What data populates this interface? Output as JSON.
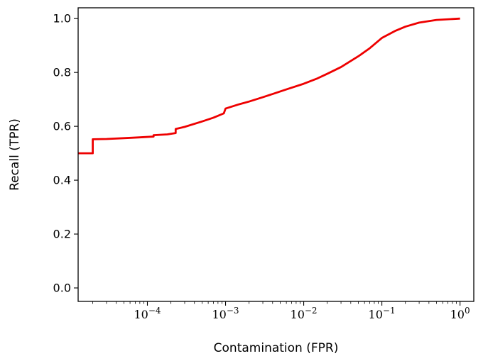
{
  "chart_data": {
    "type": "line",
    "title": "",
    "xlabel": "Contamination (FPR)",
    "ylabel": "Recall (TPR)",
    "x_scale": "log",
    "xlim": [
      1.3e-05,
      1.5
    ],
    "ylim": [
      -0.05,
      1.04
    ],
    "x_ticks": [
      {
        "value": 0.0001,
        "label": "−4"
      },
      {
        "value": 0.001,
        "label": "−3"
      },
      {
        "value": 0.01,
        "label": "−2"
      },
      {
        "value": 0.1,
        "label": "−1"
      },
      {
        "value": 1,
        "label": "0"
      }
    ],
    "x_tick_base": "10",
    "y_ticks": [
      {
        "value": 0.0,
        "label": "0.0"
      },
      {
        "value": 0.2,
        "label": "0.2"
      },
      {
        "value": 0.4,
        "label": "0.4"
      },
      {
        "value": 0.6,
        "label": "0.6"
      },
      {
        "value": 0.8,
        "label": "0.8"
      },
      {
        "value": 1.0,
        "label": "1.0"
      }
    ],
    "grid": false,
    "series": [
      {
        "color": "#ee0000",
        "points": [
          [
            1.3e-05,
            0.5
          ],
          [
            2e-05,
            0.5
          ],
          [
            2e-05,
            0.552
          ],
          [
            3e-05,
            0.553
          ],
          [
            5e-05,
            0.556
          ],
          [
            8e-05,
            0.559
          ],
          [
            0.00012,
            0.562
          ],
          [
            0.00012,
            0.567
          ],
          [
            0.00018,
            0.57
          ],
          [
            0.00023,
            0.575
          ],
          [
            0.00023,
            0.59
          ],
          [
            0.0003,
            0.598
          ],
          [
            0.0005,
            0.618
          ],
          [
            0.0007,
            0.632
          ],
          [
            0.00095,
            0.648
          ],
          [
            0.001,
            0.666
          ],
          [
            0.0015,
            0.682
          ],
          [
            0.002,
            0.692
          ],
          [
            0.003,
            0.708
          ],
          [
            0.004,
            0.72
          ],
          [
            0.006,
            0.737
          ],
          [
            0.01,
            0.758
          ],
          [
            0.015,
            0.778
          ],
          [
            0.02,
            0.795
          ],
          [
            0.03,
            0.82
          ],
          [
            0.05,
            0.86
          ],
          [
            0.07,
            0.89
          ],
          [
            0.1,
            0.928
          ],
          [
            0.15,
            0.955
          ],
          [
            0.2,
            0.97
          ],
          [
            0.3,
            0.985
          ],
          [
            0.5,
            0.995
          ],
          [
            1.0,
            1.0
          ]
        ]
      }
    ]
  }
}
